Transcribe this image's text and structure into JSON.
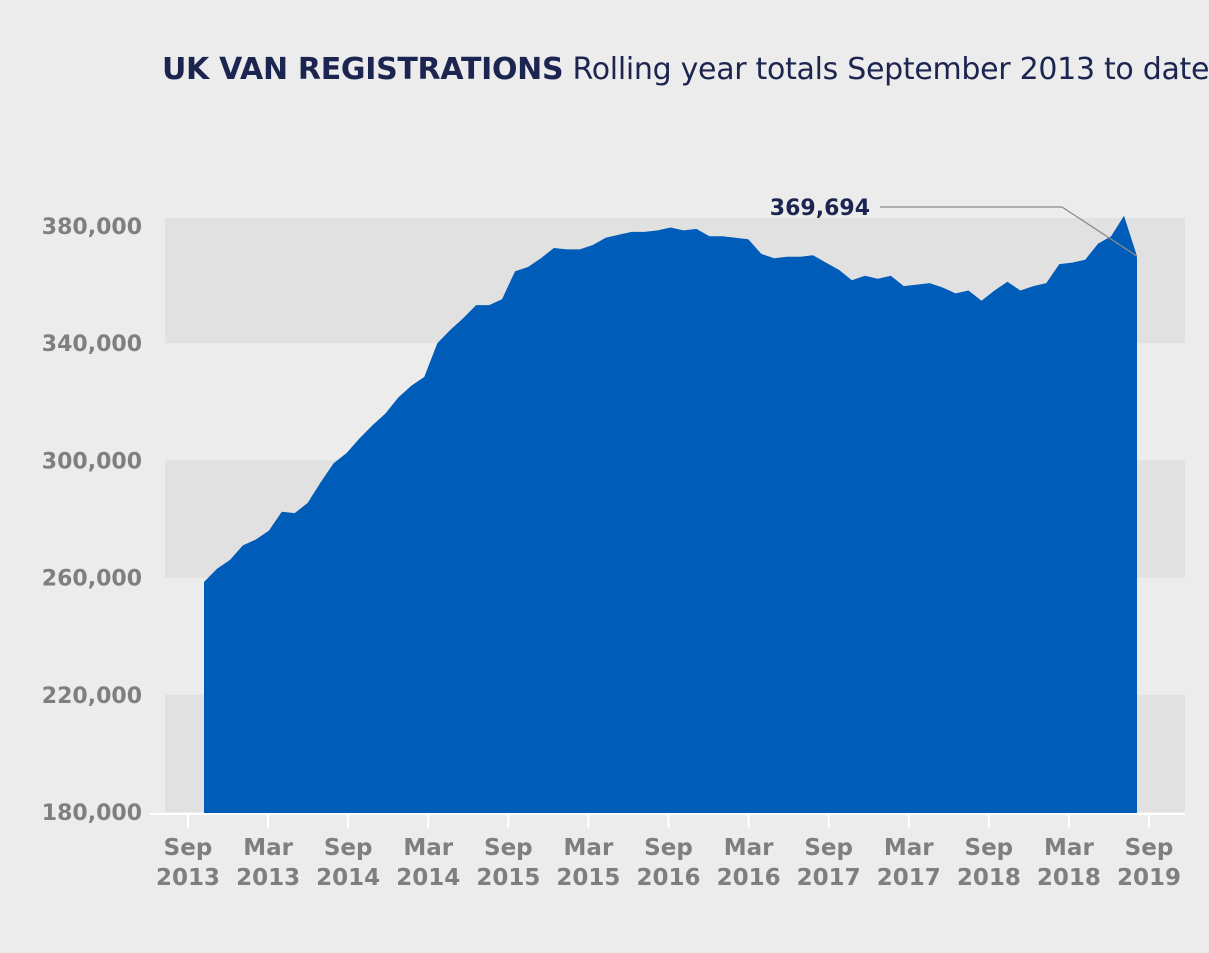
{
  "title": {
    "bold": "UK VAN REGISTRATIONS",
    "subtitle": "Rolling year totals September 2013 to date"
  },
  "colors": {
    "area": "#005cb9",
    "title": "#1c2450",
    "band": "#e1e1e1",
    "background": "#ececec",
    "tick": "#7f7f7f"
  },
  "chart_data": {
    "type": "area",
    "title": "UK VAN REGISTRATIONS Rolling year totals September 2013 to date",
    "xlabel": "",
    "ylabel": "",
    "ylim": [
      180000,
      380000
    ],
    "yticks": [
      180000,
      220000,
      260000,
      300000,
      340000,
      380000
    ],
    "ytick_labels": [
      "180,000",
      "220,000",
      "260,000",
      "300,000",
      "340,000",
      "380,000"
    ],
    "xtick_labels": [
      [
        "Sep",
        "2013"
      ],
      [
        "Mar",
        "2013"
      ],
      [
        "Sep",
        "2014"
      ],
      [
        "Mar",
        "2014"
      ],
      [
        "Sep",
        "2015"
      ],
      [
        "Mar",
        "2015"
      ],
      [
        "Sep",
        "2016"
      ],
      [
        "Mar",
        "2016"
      ],
      [
        "Sep",
        "2017"
      ],
      [
        "Mar",
        "2017"
      ],
      [
        "Sep",
        "2018"
      ],
      [
        "Mar",
        "2018"
      ],
      [
        "Sep",
        "2019"
      ]
    ],
    "grid": "alternating horizontal bands",
    "annotation": {
      "label": "369,694",
      "value": 369694,
      "points_to": "last value"
    },
    "series": [
      {
        "values": [
          258500,
          263000,
          266000,
          271000,
          273000,
          276000,
          282500,
          282000,
          285500,
          292500,
          299000,
          302500,
          307500,
          312000,
          316000,
          321500,
          325500,
          328500,
          340000,
          344500,
          348500,
          353000,
          353000,
          355000,
          364500,
          366000,
          369000,
          372500,
          372000,
          372000,
          373500,
          376000,
          377000,
          378000,
          378000,
          378500,
          379500,
          378500,
          379000,
          376500,
          376500,
          376000,
          375500,
          370500,
          369000,
          369500,
          369500,
          370000,
          367500,
          365000,
          361500,
          363000,
          362000,
          363000,
          359500,
          360000,
          360500,
          359000,
          357000,
          358000,
          354500,
          358000,
          361000,
          358000,
          359500,
          360500,
          367000,
          367500,
          368500,
          374000,
          376500,
          383500,
          369694
        ]
      }
    ]
  }
}
